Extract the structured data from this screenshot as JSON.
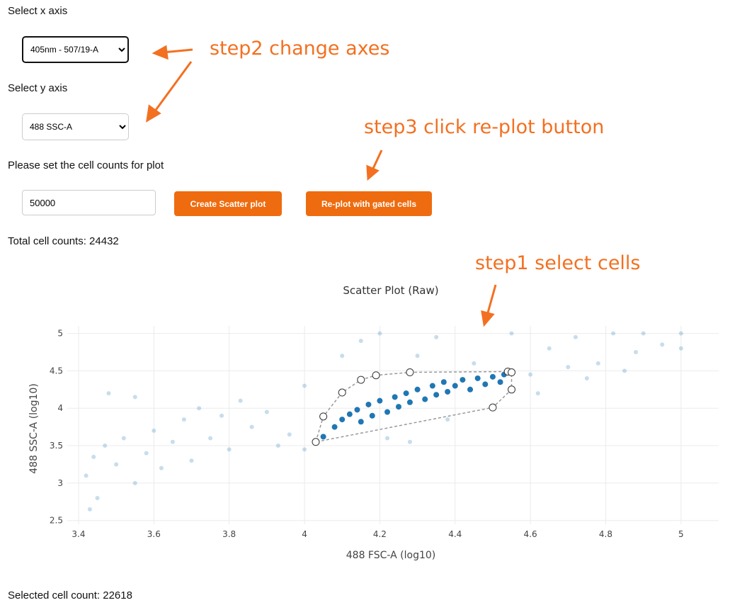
{
  "controls": {
    "x_axis_label": "Select x axis",
    "x_axis_selected": "405nm - 507/19-A",
    "y_axis_label": "Select y axis",
    "y_axis_selected": "488 SSC-A",
    "cell_count_prompt": "Please set the cell counts for plot",
    "cell_count_value": "50000",
    "create_button": "Create Scatter plot",
    "replot_button": "Re-plot with gated cells",
    "total_counts": "Total cell counts: 24432",
    "selected_counts": "Selected cell count: 22618"
  },
  "annotations": {
    "step1": "step1 select cells",
    "step2": "step2 change axes",
    "step3": "step3 click re-plot button",
    "color": "#f37021"
  },
  "colors": {
    "button": "#ee6c0f",
    "points": "#1f77b4"
  },
  "chart_data": {
    "type": "scatter",
    "title": "Scatter Plot (Raw)",
    "xlabel": "488 FSC-A (log10)",
    "ylabel": "488 SSC-A (log10)",
    "xlim": [
      3.37,
      5.1
    ],
    "ylim": [
      2.45,
      5.1
    ],
    "xticks": [
      "3.4",
      "3.6",
      "3.8",
      "4",
      "4.2",
      "4.4",
      "4.6",
      "4.8",
      "5"
    ],
    "yticks": [
      "2.5",
      "3",
      "3.5",
      "4",
      "4.5",
      "5"
    ],
    "grid": true,
    "lasso_vertices": [
      {
        "x": 4.03,
        "y": 3.55
      },
      {
        "x": 4.05,
        "y": 3.89
      },
      {
        "x": 4.1,
        "y": 4.21
      },
      {
        "x": 4.15,
        "y": 4.38
      },
      {
        "x": 4.19,
        "y": 4.44
      },
      {
        "x": 4.28,
        "y": 4.48
      },
      {
        "x": 4.54,
        "y": 4.49
      },
      {
        "x": 4.55,
        "y": 4.48
      },
      {
        "x": 4.55,
        "y": 4.25
      },
      {
        "x": 4.5,
        "y": 4.01
      }
    ],
    "selected_points": [
      {
        "x": 4.05,
        "y": 3.62
      },
      {
        "x": 4.08,
        "y": 3.75
      },
      {
        "x": 4.1,
        "y": 3.85
      },
      {
        "x": 4.12,
        "y": 3.92
      },
      {
        "x": 4.14,
        "y": 3.98
      },
      {
        "x": 4.15,
        "y": 3.82
      },
      {
        "x": 4.17,
        "y": 4.05
      },
      {
        "x": 4.18,
        "y": 3.9
      },
      {
        "x": 4.2,
        "y": 4.1
      },
      {
        "x": 4.22,
        "y": 3.95
      },
      {
        "x": 4.24,
        "y": 4.15
      },
      {
        "x": 4.25,
        "y": 4.02
      },
      {
        "x": 4.27,
        "y": 4.2
      },
      {
        "x": 4.28,
        "y": 4.08
      },
      {
        "x": 4.3,
        "y": 4.25
      },
      {
        "x": 4.32,
        "y": 4.12
      },
      {
        "x": 4.34,
        "y": 4.3
      },
      {
        "x": 4.35,
        "y": 4.18
      },
      {
        "x": 4.37,
        "y": 4.35
      },
      {
        "x": 4.38,
        "y": 4.22
      },
      {
        "x": 4.4,
        "y": 4.3
      },
      {
        "x": 4.42,
        "y": 4.38
      },
      {
        "x": 4.44,
        "y": 4.25
      },
      {
        "x": 4.46,
        "y": 4.4
      },
      {
        "x": 4.48,
        "y": 4.32
      },
      {
        "x": 4.5,
        "y": 4.42
      },
      {
        "x": 4.52,
        "y": 4.35
      },
      {
        "x": 4.53,
        "y": 4.45
      }
    ],
    "unselected_points": [
      {
        "x": 3.42,
        "y": 3.1
      },
      {
        "x": 3.44,
        "y": 3.35
      },
      {
        "x": 3.45,
        "y": 2.8
      },
      {
        "x": 3.47,
        "y": 3.5
      },
      {
        "x": 3.5,
        "y": 3.25
      },
      {
        "x": 3.52,
        "y": 3.6
      },
      {
        "x": 3.55,
        "y": 3.0
      },
      {
        "x": 3.58,
        "y": 3.4
      },
      {
        "x": 3.6,
        "y": 3.7
      },
      {
        "x": 3.62,
        "y": 3.2
      },
      {
        "x": 3.65,
        "y": 3.55
      },
      {
        "x": 3.68,
        "y": 3.85
      },
      {
        "x": 3.7,
        "y": 3.3
      },
      {
        "x": 3.72,
        "y": 4.0
      },
      {
        "x": 3.75,
        "y": 3.6
      },
      {
        "x": 3.78,
        "y": 3.9
      },
      {
        "x": 3.8,
        "y": 3.45
      },
      {
        "x": 3.83,
        "y": 4.1
      },
      {
        "x": 3.86,
        "y": 3.75
      },
      {
        "x": 3.9,
        "y": 3.95
      },
      {
        "x": 3.93,
        "y": 3.5
      },
      {
        "x": 3.96,
        "y": 3.65
      },
      {
        "x": 4.0,
        "y": 4.3
      },
      {
        "x": 4.0,
        "y": 3.45
      },
      {
        "x": 4.1,
        "y": 4.7
      },
      {
        "x": 4.15,
        "y": 4.9
      },
      {
        "x": 4.2,
        "y": 5.0
      },
      {
        "x": 4.3,
        "y": 4.7
      },
      {
        "x": 4.35,
        "y": 4.95
      },
      {
        "x": 4.45,
        "y": 4.6
      },
      {
        "x": 4.55,
        "y": 5.0
      },
      {
        "x": 4.6,
        "y": 4.45
      },
      {
        "x": 4.62,
        "y": 4.2
      },
      {
        "x": 4.65,
        "y": 4.8
      },
      {
        "x": 4.7,
        "y": 4.55
      },
      {
        "x": 4.72,
        "y": 4.95
      },
      {
        "x": 4.75,
        "y": 4.4
      },
      {
        "x": 4.78,
        "y": 4.6
      },
      {
        "x": 4.82,
        "y": 5.0
      },
      {
        "x": 4.85,
        "y": 4.5
      },
      {
        "x": 4.88,
        "y": 4.75
      },
      {
        "x": 4.9,
        "y": 5.0
      },
      {
        "x": 4.95,
        "y": 4.85
      },
      {
        "x": 5.0,
        "y": 4.8
      },
      {
        "x": 5.0,
        "y": 5.0
      },
      {
        "x": 3.43,
        "y": 2.65
      },
      {
        "x": 3.55,
        "y": 4.15
      },
      {
        "x": 3.48,
        "y": 4.2
      },
      {
        "x": 4.22,
        "y": 3.6
      },
      {
        "x": 4.38,
        "y": 3.85
      },
      {
        "x": 4.28,
        "y": 3.55
      }
    ]
  }
}
